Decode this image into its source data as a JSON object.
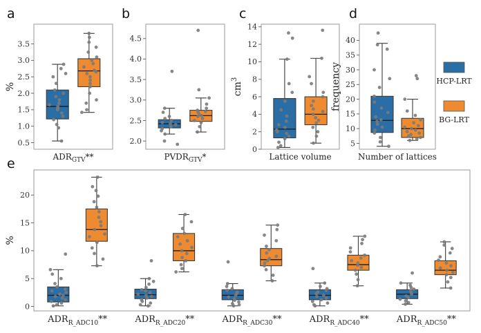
{
  "colors": {
    "hcp": "#2b6ea6",
    "bg": "#ee8a2f",
    "point": "#7a7a7a",
    "axis": "#9a9a9a",
    "median": "#1a1a1a"
  },
  "legend": {
    "hcp": "HCP-LRT",
    "bg": "BG-LRT"
  },
  "chart_data": [
    {
      "panel": "a",
      "type": "box",
      "xlabel_main": "ADR",
      "xlabel_sub": "GTV",
      "xlabel_suffix": "**",
      "ylabel": "%",
      "ylim": [
        0.3,
        4.1
      ],
      "yticks": [
        0.5,
        1.0,
        1.5,
        2.0,
        2.5,
        3.0,
        3.5
      ],
      "ytick_labels": [
        "0.5",
        "1.0",
        "1.5",
        "2.0",
        "2.5",
        "3.0",
        "3.5"
      ],
      "series": [
        {
          "group": "hcp",
          "box": {
            "whislo": 0.55,
            "q1": 1.22,
            "med": 1.6,
            "q3": 2.1,
            "whishi": 2.88
          },
          "points": [
            0.55,
            0.95,
            1.05,
            1.2,
            1.3,
            1.4,
            1.5,
            1.55,
            1.6,
            1.65,
            1.7,
            1.8,
            1.9,
            2.0,
            2.1,
            2.3,
            2.5,
            2.6,
            2.75,
            2.88
          ]
        },
        {
          "group": "bg",
          "box": {
            "whislo": 1.42,
            "q1": 2.2,
            "med": 2.68,
            "q3": 3.05,
            "whishi": 3.82
          },
          "points": [
            1.42,
            1.5,
            1.7,
            1.8,
            2.0,
            2.2,
            2.3,
            2.4,
            2.5,
            2.6,
            2.65,
            2.7,
            2.8,
            2.9,
            3.0,
            3.1,
            3.25,
            3.4,
            3.55,
            3.7,
            3.82
          ]
        }
      ]
    },
    {
      "panel": "b",
      "type": "box",
      "xlabel_main": "PVDR",
      "xlabel_sub": "GTV",
      "xlabel_suffix": "*",
      "ylabel": "",
      "ylim": [
        1.8,
        4.85
      ],
      "yticks": [
        2.0,
        2.5,
        3.0,
        3.5,
        4.0,
        4.5
      ],
      "ytick_labels": [
        "2.0",
        "2.5",
        "3.0",
        "3.5",
        "4.0",
        "4.5"
      ],
      "series": [
        {
          "group": "hcp",
          "box": {
            "whislo": 2.17,
            "q1": 2.32,
            "med": 2.42,
            "q3": 2.52,
            "whishi": 2.8
          },
          "points": [
            1.92,
            2.0,
            2.17,
            2.25,
            2.3,
            2.35,
            2.4,
            2.42,
            2.45,
            2.5,
            2.55,
            2.6,
            2.7,
            2.8,
            3.7
          ]
        },
        {
          "group": "bg",
          "box": {
            "whislo": 2.22,
            "q1": 2.48,
            "med": 2.62,
            "q3": 2.75,
            "whishi": 3.05
          },
          "points": [
            2.22,
            2.35,
            2.45,
            2.5,
            2.55,
            2.6,
            2.62,
            2.65,
            2.7,
            2.72,
            2.75,
            2.8,
            2.9,
            3.05,
            3.25,
            4.7
          ]
        }
      ]
    },
    {
      "panel": "c",
      "type": "box",
      "xlabel_main": "Lattice volume",
      "xlabel_sub": "",
      "xlabel_suffix": "",
      "ylabel": "cm",
      "ylabel_sup": "3",
      "ylim": [
        0,
        14.3
      ],
      "yticks": [
        0,
        2,
        4,
        6,
        8,
        10,
        12,
        14
      ],
      "ytick_labels": [
        "0",
        "2",
        "4",
        "6",
        "8",
        "10",
        "12",
        "14"
      ],
      "series": [
        {
          "group": "hcp",
          "box": {
            "whislo": 0.2,
            "q1": 1.3,
            "med": 2.3,
            "q3": 5.8,
            "whishi": 10.3
          },
          "points": [
            0.2,
            0.4,
            0.8,
            1.2,
            1.5,
            1.8,
            2.0,
            2.2,
            2.5,
            2.8,
            3.2,
            3.8,
            4.5,
            5.5,
            6.5,
            7.5,
            10.3,
            12.7,
            13.3
          ]
        },
        {
          "group": "bg",
          "box": {
            "whislo": 0.7,
            "q1": 2.8,
            "med": 4.0,
            "q3": 6.0,
            "whishi": 10.4
          },
          "points": [
            0.7,
            1.5,
            2.0,
            2.5,
            3.0,
            3.3,
            3.6,
            4.0,
            4.3,
            4.6,
            5.0,
            5.5,
            6.0,
            6.5,
            7.5,
            8.3,
            10.4,
            13.6
          ]
        }
      ]
    },
    {
      "panel": "d",
      "type": "box",
      "xlabel_main": "Number of lattices",
      "xlabel_sub": "",
      "xlabel_suffix": "",
      "ylabel": "frequency",
      "ylim": [
        3,
        45.5
      ],
      "yticks": [
        5,
        10,
        15,
        20,
        25,
        30,
        35,
        40
      ],
      "ytick_labels": [
        "5",
        "10",
        "15",
        "20",
        "25",
        "30",
        "35",
        "40"
      ],
      "series": [
        {
          "group": "hcp",
          "box": {
            "whislo": 4.0,
            "q1": 8.7,
            "med": 12.8,
            "q3": 21.0,
            "whishi": 39.0
          },
          "points": [
            4.0,
            5.5,
            7.0,
            8.5,
            9.5,
            10.5,
            11.5,
            12.5,
            13.0,
            14.0,
            15.5,
            17.0,
            19.0,
            21.0,
            24.0,
            27.0,
            30.0,
            37.0,
            38.5,
            42.5
          ]
        },
        {
          "group": "bg",
          "box": {
            "whislo": 6.0,
            "q1": 7.0,
            "med": 10.0,
            "q3": 13.5,
            "whishi": 20.0
          },
          "points": [
            6.0,
            6.5,
            7.0,
            7.5,
            8.0,
            8.5,
            9.0,
            9.5,
            10.0,
            10.5,
            11.0,
            12.0,
            13.0,
            14.5,
            16.0,
            20.0,
            27.0,
            28.0
          ]
        }
      ]
    },
    {
      "panel": "e",
      "type": "box",
      "ylabel": "%",
      "ylim": [
        -0.8,
        24.5
      ],
      "yticks": [
        0,
        5,
        10,
        15,
        20
      ],
      "ytick_labels": [
        "0",
        "5",
        "10",
        "15",
        "20"
      ],
      "categories": [
        {
          "main": "ADR",
          "sub": "R_ADC10",
          "suffix": "**"
        },
        {
          "main": "ADR",
          "sub": "R_ADC20",
          "suffix": "**"
        },
        {
          "main": "ADR",
          "sub": "R_ADC30",
          "suffix": "**"
        },
        {
          "main": "ADR",
          "sub": "R_ADC40",
          "suffix": "**"
        },
        {
          "main": "ADR",
          "sub": "R_ADC50",
          "suffix": "**"
        }
      ],
      "series": [
        {
          "group": "hcp",
          "boxes": [
            {
              "whislo": 0.1,
              "q1": 0.8,
              "med": 2.0,
              "q3": 3.5,
              "whishi": 6.6,
              "points": [
                0.1,
                0.3,
                0.6,
                0.9,
                1.2,
                1.5,
                1.8,
                2.0,
                2.2,
                2.5,
                2.8,
                3.1,
                3.5,
                4.1,
                5.0,
                5.8,
                6.6,
                9.4
              ]
            },
            {
              "whislo": 0.1,
              "q1": 1.4,
              "med": 2.1,
              "q3": 3.1,
              "whishi": 5.0,
              "points": [
                0.1,
                0.3,
                0.6,
                0.9,
                1.2,
                1.5,
                1.8,
                2.0,
                2.2,
                2.5,
                2.8,
                3.0,
                3.4,
                4.0,
                4.5,
                5.0,
                8.2
              ]
            },
            {
              "whislo": 0.1,
              "q1": 1.2,
              "med": 2.0,
              "q3": 3.0,
              "whishi": 4.1,
              "points": [
                0.1,
                0.3,
                0.5,
                0.8,
                1.1,
                1.4,
                1.7,
                2.0,
                2.3,
                2.6,
                2.9,
                3.2,
                3.6,
                4.1,
                8.0
              ]
            },
            {
              "whislo": 0.1,
              "q1": 1.2,
              "med": 2.0,
              "q3": 3.0,
              "whishi": 4.2,
              "points": [
                0.1,
                0.3,
                0.6,
                0.9,
                1.2,
                1.5,
                1.8,
                2.0,
                2.3,
                2.6,
                2.9,
                3.2,
                3.6,
                4.2,
                6.8
              ]
            },
            {
              "whislo": 0.4,
              "q1": 1.4,
              "med": 2.2,
              "q3": 3.0,
              "whishi": 4.2,
              "points": [
                0.4,
                0.7,
                1.0,
                1.3,
                1.6,
                1.9,
                2.2,
                2.5,
                2.8,
                3.1,
                3.4,
                3.8,
                4.2,
                6.0
              ]
            }
          ]
        },
        {
          "group": "bg",
          "boxes": [
            {
              "whislo": 7.3,
              "q1": 11.7,
              "med": 13.8,
              "q3": 17.5,
              "whishi": 23.2,
              "points": [
                7.3,
                8.5,
                9.5,
                10.5,
                11.5,
                12.5,
                13.0,
                13.8,
                14.5,
                15.2,
                16.0,
                17.0,
                17.8,
                18.8,
                19.8,
                20.8,
                21.5,
                23.2
              ]
            },
            {
              "whislo": 6.2,
              "q1": 8.2,
              "med": 10.0,
              "q3": 13.1,
              "whishi": 16.5,
              "points": [
                6.2,
                6.8,
                7.5,
                8.2,
                8.8,
                9.5,
                10.0,
                10.6,
                11.2,
                11.8,
                12.5,
                13.1,
                14.0,
                15.2,
                16.5
              ]
            },
            {
              "whislo": 4.6,
              "q1": 7.3,
              "med": 8.4,
              "q3": 10.4,
              "whishi": 14.6,
              "points": [
                4.6,
                5.6,
                6.6,
                7.3,
                7.8,
                8.2,
                8.6,
                9.0,
                9.6,
                10.2,
                10.8,
                11.8,
                12.8,
                13.8,
                14.6
              ]
            },
            {
              "whislo": 3.7,
              "q1": 6.5,
              "med": 7.5,
              "q3": 9.2,
              "whishi": 12.6,
              "points": [
                3.7,
                4.8,
                5.8,
                6.5,
                7.0,
                7.4,
                7.8,
                8.2,
                8.7,
                9.2,
                9.8,
                10.5,
                11.3,
                12.0,
                12.6
              ]
            },
            {
              "whislo": 3.3,
              "q1": 5.7,
              "med": 6.5,
              "q3": 8.2,
              "whishi": 11.6,
              "points": [
                3.3,
                4.4,
                5.2,
                5.7,
                6.1,
                6.5,
                6.9,
                7.3,
                7.8,
                8.3,
                8.9,
                9.6,
                10.4,
                11.0,
                11.6
              ]
            }
          ]
        }
      ]
    }
  ]
}
